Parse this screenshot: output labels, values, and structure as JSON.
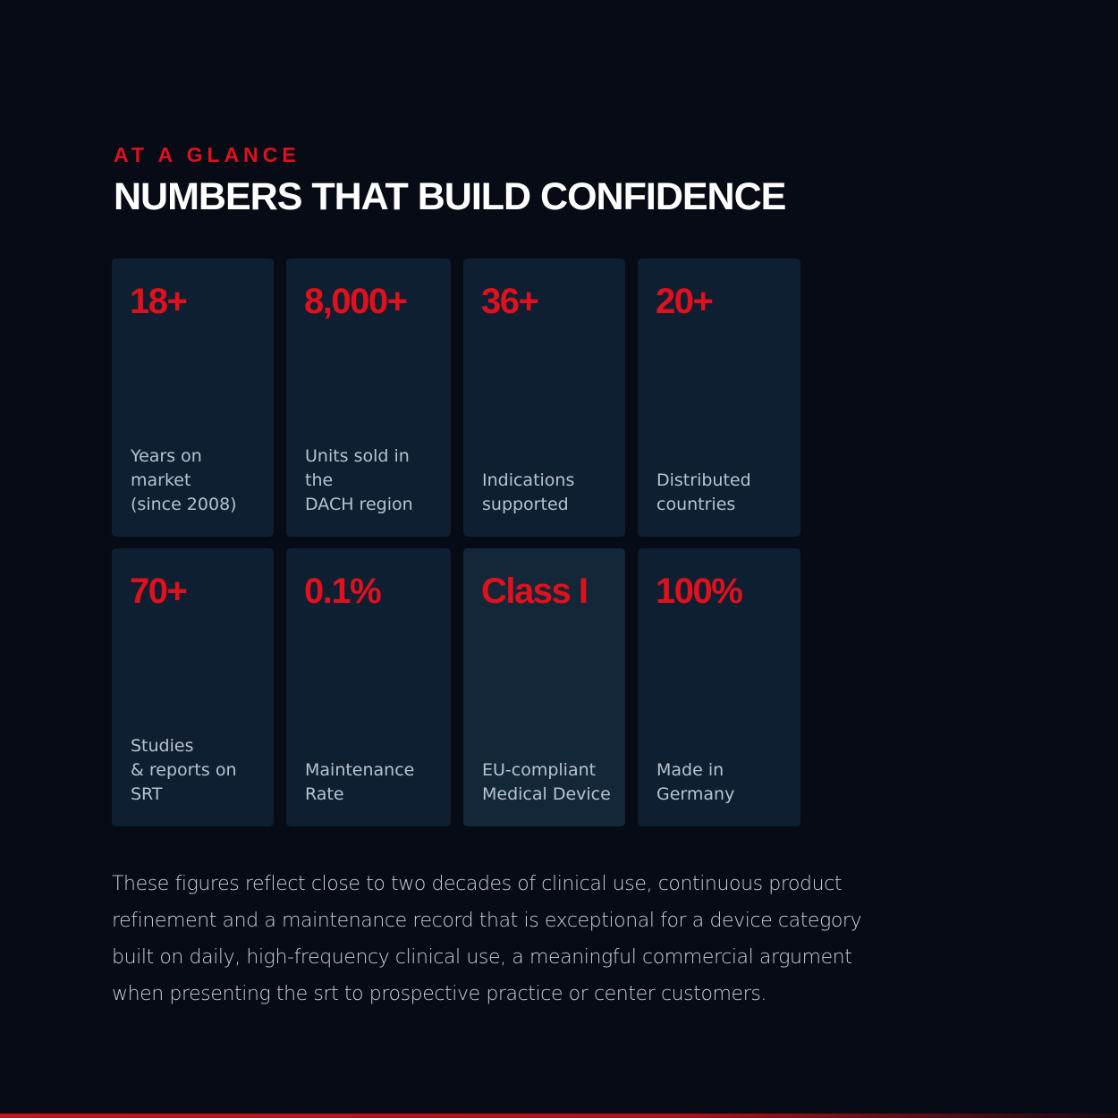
{
  "header": {
    "eyebrow": "AT A GLANCE",
    "title": "NUMBERS THAT BUILD CONFIDENCE"
  },
  "cards": [
    {
      "value": "18+",
      "label": [
        "Years on",
        "market",
        "(since 2008)"
      ]
    },
    {
      "value": "8,000+",
      "label": [
        "Units sold in",
        "the",
        "DACH region"
      ]
    },
    {
      "value": "36+",
      "label": [
        "Indications",
        "supported"
      ]
    },
    {
      "value": "20+",
      "label": [
        "Distributed",
        "countries"
      ]
    },
    {
      "value": "70+",
      "label": [
        "Studies",
        "& reports on",
        "SRT"
      ]
    },
    {
      "value": "0.1%",
      "label": [
        "Maintenance",
        "Rate"
      ]
    },
    {
      "value": "Class I",
      "label": [
        "EU-compliant",
        "Medical Device"
      ]
    },
    {
      "value": "100%",
      "label": [
        "Made in",
        "Germany"
      ]
    }
  ],
  "paragraph": "These figures reflect close to two decades of clinical use, continuous product refinement and a maintenance record that is exceptional for a device category built on daily, high-frequency clinical use, a meaningful commercial argument when presenting the srt to prospective practice or center customers."
}
